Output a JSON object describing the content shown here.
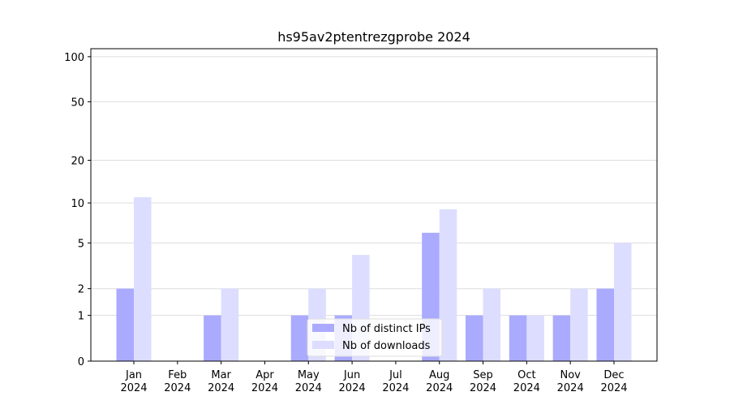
{
  "chart_data": {
    "type": "bar",
    "title": "hs95av2ptentrezgprobe 2024",
    "categories": [
      "Jan\n2024",
      "Feb\n2024",
      "Mar\n2024",
      "Apr\n2024",
      "May\n2024",
      "Jun\n2024",
      "Jul\n2024",
      "Aug\n2024",
      "Sep\n2024",
      "Oct\n2024",
      "Nov\n2024",
      "Dec\n2024"
    ],
    "series": [
      {
        "name": "Nb of distinct IPs",
        "color": "#aaaaff",
        "values": [
          2,
          0,
          1,
          0,
          1,
          1,
          0,
          6,
          1,
          1,
          1,
          2
        ]
      },
      {
        "name": "Nb of downloads",
        "color": "#ddddff",
        "values": [
          11,
          0,
          2,
          0,
          2,
          4,
          0,
          9,
          2,
          1,
          2,
          5
        ]
      }
    ],
    "y_scale": "log1p",
    "ylim": [
      0,
      113
    ],
    "yticks": [
      0,
      1,
      2,
      5,
      10,
      20,
      50,
      100
    ],
    "grid": true,
    "legend": "lower center"
  }
}
